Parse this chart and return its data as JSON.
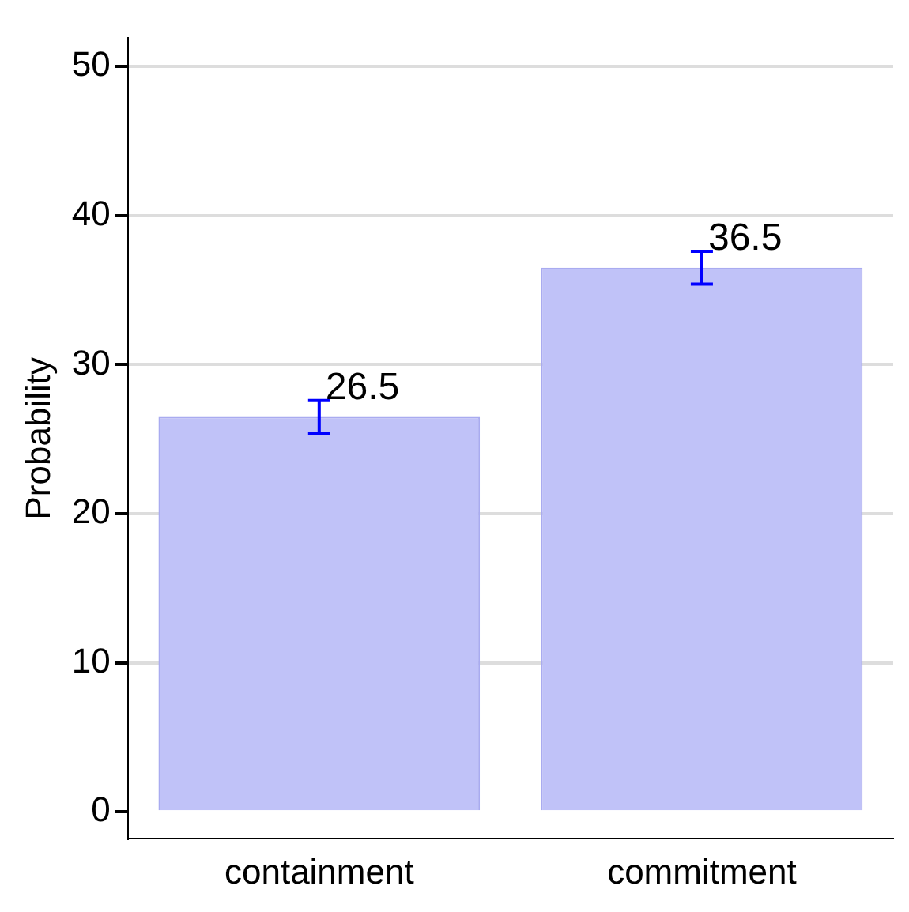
{
  "chart_data": {
    "type": "bar",
    "ylabel": "Probability",
    "categories": [
      "containment",
      "commitment"
    ],
    "values": [
      26.5,
      36.5
    ],
    "color": "#c0c2f8",
    "errors": [
      1.1,
      1.1
    ],
    "data_labels": true,
    "ylim": [
      -1.8,
      51.9
    ],
    "yticks": [
      0,
      10,
      20,
      30,
      40,
      50
    ],
    "grid": "y",
    "legend": false
  }
}
